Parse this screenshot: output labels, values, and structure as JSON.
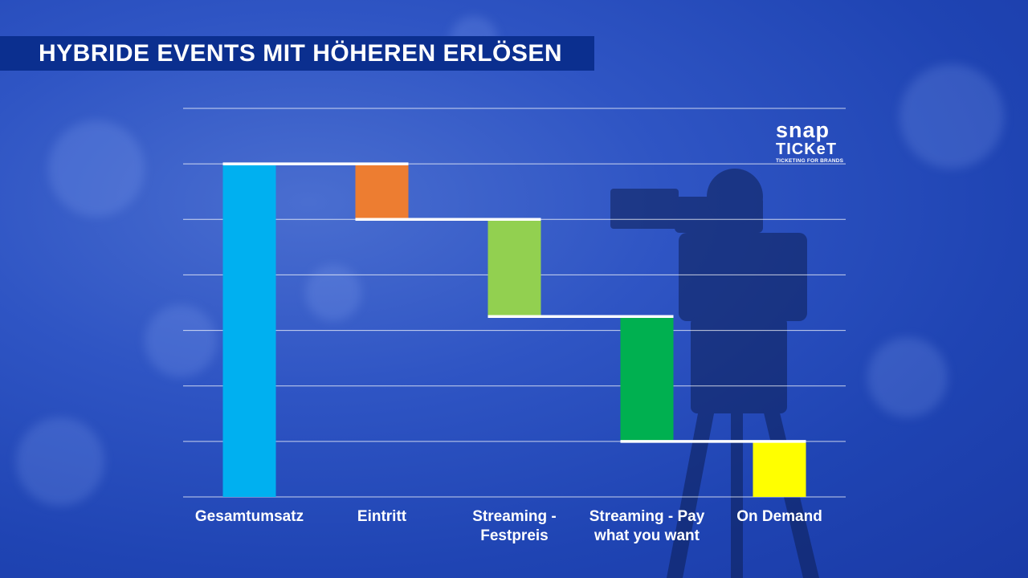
{
  "title": "HYBRIDE EVENTS MIT HÖHEREN ERLÖSEN",
  "logo": {
    "line1": "snap",
    "line2": "TICKeT",
    "tagline": "TICKETING FOR BRANDS"
  },
  "chart_data": {
    "type": "bar",
    "subtype": "waterfall",
    "categories": [
      "Gesamtumsatz",
      "Eintritt",
      "Streaming - Festpreis",
      "Streaming - Pay what you want",
      "On Demand"
    ],
    "bars": [
      {
        "category": "Gesamtumsatz",
        "bottom": 0,
        "top": 6,
        "color": "#00b0f0"
      },
      {
        "category": "Eintritt",
        "bottom": 5,
        "top": 6,
        "color": "#ed7d31"
      },
      {
        "category": "Streaming - Festpreis",
        "bottom": 3.25,
        "top": 5,
        "color": "#92d050"
      },
      {
        "category": "Streaming - Pay what you want",
        "bottom": 1,
        "top": 3.25,
        "color": "#00b050"
      },
      {
        "category": "On Demand",
        "bottom": 0,
        "top": 1,
        "color": "#ffff00"
      }
    ],
    "ylim": [
      0,
      7
    ],
    "grid": true,
    "gridlines": 7,
    "axis_labels_shown": false,
    "connector_color": "#ffffff"
  }
}
